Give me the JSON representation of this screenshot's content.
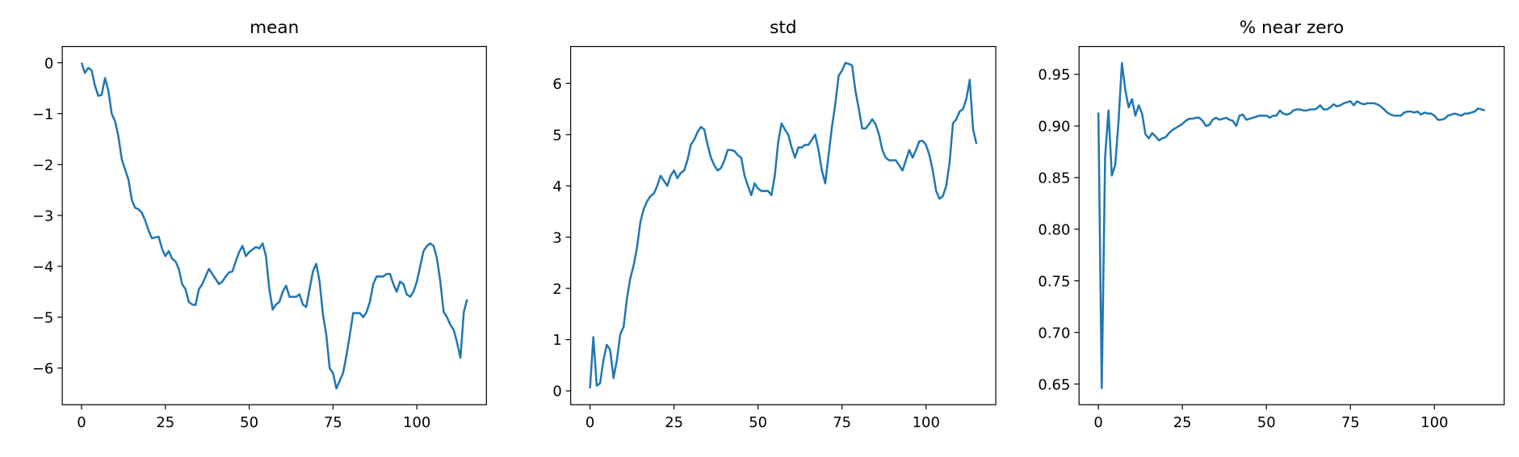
{
  "chart_data": [
    {
      "type": "line",
      "title": "mean",
      "color": "#1f77b4",
      "x": [
        0,
        1,
        2,
        3,
        4,
        5,
        6,
        7,
        8,
        9,
        10,
        11,
        12,
        13,
        14,
        15,
        16,
        17,
        18,
        19,
        20,
        21,
        22,
        23,
        24,
        25,
        26,
        27,
        28,
        29,
        30,
        31,
        32,
        33,
        34,
        35,
        36,
        37,
        38,
        39,
        40,
        41,
        42,
        43,
        44,
        45,
        46,
        47,
        48,
        49,
        50,
        51,
        52,
        53,
        54,
        55,
        56,
        57,
        58,
        59,
        60,
        61,
        62,
        63,
        64,
        65,
        66,
        67,
        68,
        69,
        70,
        71,
        72,
        73,
        74,
        75,
        76,
        77,
        78,
        79,
        80,
        81,
        82,
        83,
        84,
        85,
        86,
        87,
        88,
        89,
        90,
        91,
        92,
        93,
        94,
        95,
        96,
        97,
        98,
        99,
        100,
        101,
        102,
        103,
        104,
        105,
        106,
        107,
        108,
        109,
        110,
        111,
        112,
        113,
        114,
        115
      ],
      "values": [
        0,
        -0.2,
        -0.1,
        -0.15,
        -0.45,
        -0.65,
        -0.63,
        -0.3,
        -0.55,
        -1.0,
        -1.15,
        -1.45,
        -1.9,
        -2.1,
        -2.3,
        -2.7,
        -2.85,
        -2.88,
        -2.95,
        -3.1,
        -3.3,
        -3.45,
        -3.43,
        -3.42,
        -3.65,
        -3.8,
        -3.7,
        -3.85,
        -3.9,
        -4.05,
        -4.35,
        -4.45,
        -4.7,
        -4.75,
        -4.76,
        -4.45,
        -4.35,
        -4.2,
        -4.05,
        -4.15,
        -4.25,
        -4.35,
        -4.3,
        -4.2,
        -4.12,
        -4.1,
        -3.9,
        -3.72,
        -3.6,
        -3.8,
        -3.72,
        -3.67,
        -3.62,
        -3.65,
        -3.55,
        -3.8,
        -4.45,
        -4.85,
        -4.75,
        -4.7,
        -4.5,
        -4.38,
        -4.6,
        -4.6,
        -4.6,
        -4.55,
        -4.75,
        -4.8,
        -4.45,
        -4.1,
        -3.95,
        -4.3,
        -4.95,
        -5.35,
        -6.0,
        -6.1,
        -6.4,
        -6.25,
        -6.1,
        -5.75,
        -5.35,
        -4.92,
        -4.92,
        -4.92,
        -5.0,
        -4.9,
        -4.7,
        -4.35,
        -4.2,
        -4.2,
        -4.2,
        -4.15,
        -4.15,
        -4.35,
        -4.5,
        -4.3,
        -4.35,
        -4.55,
        -4.6,
        -4.5,
        -4.3,
        -4.0,
        -3.7,
        -3.6,
        -3.55,
        -3.6,
        -3.85,
        -4.3,
        -4.9,
        -5.0,
        -5.15,
        -5.25,
        -5.5,
        -5.8,
        -4.9,
        -4.65
      ],
      "xlim": [
        -5.75,
        120.75
      ],
      "xticks": [
        0,
        25,
        50,
        75,
        100
      ],
      "ylim": [
        -6.72,
        0.32
      ],
      "yticks": [
        {
          "value": -6,
          "label": "−6"
        },
        {
          "value": -5,
          "label": "−5"
        },
        {
          "value": -4,
          "label": "−4"
        },
        {
          "value": -3,
          "label": "−3"
        },
        {
          "value": -2,
          "label": "−2"
        },
        {
          "value": -1,
          "label": "−1"
        },
        0
      ]
    },
    {
      "type": "line",
      "title": "std",
      "color": "#1f77b4",
      "x": [
        0,
        1,
        2,
        3,
        4,
        5,
        6,
        7,
        8,
        9,
        10,
        11,
        12,
        13,
        14,
        15,
        16,
        17,
        18,
        19,
        20,
        21,
        22,
        23,
        24,
        25,
        26,
        27,
        28,
        29,
        30,
        31,
        32,
        33,
        34,
        35,
        36,
        37,
        38,
        39,
        40,
        41,
        42,
        43,
        44,
        45,
        46,
        47,
        48,
        49,
        50,
        51,
        52,
        53,
        54,
        55,
        56,
        57,
        58,
        59,
        60,
        61,
        62,
        63,
        64,
        65,
        66,
        67,
        68,
        69,
        70,
        71,
        72,
        73,
        74,
        75,
        76,
        77,
        78,
        79,
        80,
        81,
        82,
        83,
        84,
        85,
        86,
        87,
        88,
        89,
        90,
        91,
        92,
        93,
        94,
        95,
        96,
        97,
        98,
        99,
        100,
        101,
        102,
        103,
        104,
        105,
        106,
        107,
        108,
        109,
        110,
        111,
        112,
        113,
        114,
        115
      ],
      "values": [
        0.05,
        1.05,
        0.1,
        0.15,
        0.6,
        0.9,
        0.8,
        0.25,
        0.6,
        1.1,
        1.25,
        1.8,
        2.2,
        2.45,
        2.8,
        3.3,
        3.55,
        3.7,
        3.8,
        3.85,
        4.0,
        4.2,
        4.1,
        4.0,
        4.2,
        4.3,
        4.15,
        4.25,
        4.3,
        4.5,
        4.8,
        4.9,
        5.05,
        5.15,
        5.1,
        4.8,
        4.55,
        4.4,
        4.3,
        4.35,
        4.5,
        4.7,
        4.7,
        4.68,
        4.6,
        4.55,
        4.2,
        4.0,
        3.82,
        4.05,
        3.95,
        3.9,
        3.9,
        3.9,
        3.82,
        4.2,
        4.85,
        5.22,
        5.1,
        5.0,
        4.75,
        4.55,
        4.75,
        4.75,
        4.8,
        4.8,
        4.9,
        5.0,
        4.7,
        4.3,
        4.05,
        4.6,
        5.15,
        5.6,
        6.15,
        6.25,
        6.4,
        6.38,
        6.35,
        5.85,
        5.5,
        5.12,
        5.12,
        5.2,
        5.3,
        5.2,
        5.0,
        4.7,
        4.55,
        4.5,
        4.5,
        4.5,
        4.4,
        4.3,
        4.5,
        4.7,
        4.55,
        4.7,
        4.87,
        4.88,
        4.8,
        4.6,
        4.3,
        3.9,
        3.75,
        3.8,
        4.0,
        4.45,
        5.22,
        5.3,
        5.45,
        5.5,
        5.7,
        6.07,
        5.1,
        4.82
      ],
      "xlim": [
        -5.75,
        120.75
      ],
      "xticks": [
        0,
        25,
        50,
        75,
        100
      ],
      "ylim": [
        -0.27,
        6.72
      ],
      "yticks": [
        0,
        1,
        2,
        3,
        4,
        5,
        6
      ]
    },
    {
      "type": "line",
      "title": "% near zero",
      "color": "#1f77b4",
      "x": [
        0,
        1,
        2,
        3,
        4,
        5,
        6,
        7,
        8,
        9,
        10,
        11,
        12,
        13,
        14,
        15,
        16,
        17,
        18,
        19,
        20,
        21,
        22,
        23,
        24,
        25,
        26,
        27,
        28,
        29,
        30,
        31,
        32,
        33,
        34,
        35,
        36,
        37,
        38,
        39,
        40,
        41,
        42,
        43,
        44,
        45,
        46,
        47,
        48,
        49,
        50,
        51,
        52,
        53,
        54,
        55,
        56,
        57,
        58,
        59,
        60,
        61,
        62,
        63,
        64,
        65,
        66,
        67,
        68,
        69,
        70,
        71,
        72,
        73,
        74,
        75,
        76,
        77,
        78,
        79,
        80,
        81,
        82,
        83,
        84,
        85,
        86,
        87,
        88,
        89,
        90,
        91,
        92,
        93,
        94,
        95,
        96,
        97,
        98,
        99,
        100,
        101,
        102,
        103,
        104,
        105,
        106,
        107,
        108,
        109,
        110,
        111,
        112,
        113,
        114,
        115
      ],
      "values": [
        0.913,
        0.646,
        0.87,
        0.915,
        0.852,
        0.862,
        0.905,
        0.961,
        0.935,
        0.918,
        0.926,
        0.91,
        0.92,
        0.912,
        0.892,
        0.888,
        0.893,
        0.89,
        0.886,
        0.888,
        0.889,
        0.893,
        0.896,
        0.898,
        0.9,
        0.902,
        0.905,
        0.907,
        0.907,
        0.908,
        0.908,
        0.905,
        0.9,
        0.901,
        0.906,
        0.908,
        0.906,
        0.907,
        0.908,
        0.906,
        0.905,
        0.9,
        0.91,
        0.911,
        0.906,
        0.907,
        0.908,
        0.909,
        0.91,
        0.91,
        0.91,
        0.908,
        0.91,
        0.91,
        0.915,
        0.912,
        0.911,
        0.912,
        0.915,
        0.916,
        0.916,
        0.915,
        0.915,
        0.916,
        0.916,
        0.917,
        0.92,
        0.916,
        0.916,
        0.918,
        0.921,
        0.919,
        0.92,
        0.922,
        0.923,
        0.924,
        0.92,
        0.924,
        0.922,
        0.921,
        0.922,
        0.922,
        0.922,
        0.921,
        0.919,
        0.916,
        0.913,
        0.911,
        0.91,
        0.91,
        0.91,
        0.913,
        0.914,
        0.914,
        0.913,
        0.914,
        0.911,
        0.913,
        0.912,
        0.912,
        0.91,
        0.906,
        0.906,
        0.907,
        0.91,
        0.911,
        0.912,
        0.911,
        0.91,
        0.912,
        0.912,
        0.913,
        0.914,
        0.917,
        0.916,
        0.915
      ],
      "xlim": [
        -5.75,
        120.75
      ],
      "xticks": [
        0,
        25,
        50,
        75,
        100
      ],
      "ylim": [
        0.63,
        0.977
      ],
      "yticks": [
        0.65,
        {
          "value": 0.7,
          "label": "0.70"
        },
        0.75,
        {
          "value": 0.8,
          "label": "0.80"
        },
        0.85,
        {
          "value": 0.9,
          "label": "0.90"
        },
        0.95
      ]
    }
  ]
}
